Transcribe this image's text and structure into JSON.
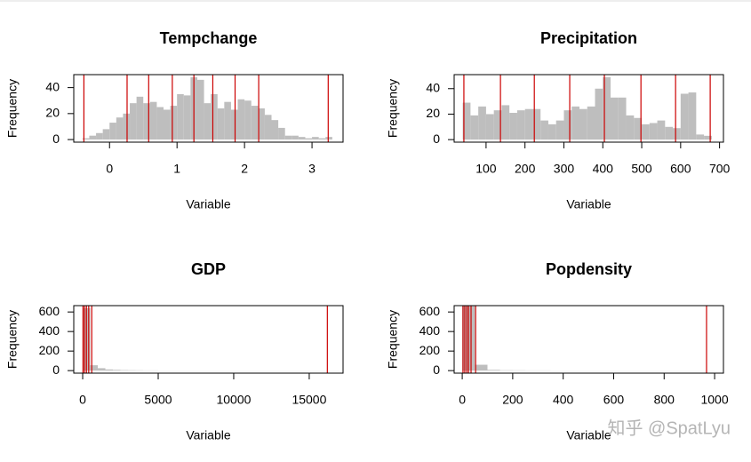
{
  "chart_data": [
    {
      "type": "histogram",
      "title": "Tempchange",
      "xlabel": "Variable",
      "ylabel": "Frequency",
      "bins": [
        -0.4,
        -0.3,
        -0.2,
        -0.1,
        0.0,
        0.1,
        0.2,
        0.3,
        0.4,
        0.5,
        0.6,
        0.7,
        0.8,
        0.9,
        1.0,
        1.1,
        1.2,
        1.3,
        1.4,
        1.5,
        1.6,
        1.7,
        1.8,
        1.9,
        2.0,
        2.1,
        2.2,
        2.3,
        2.4,
        2.5,
        2.6,
        2.7,
        2.8,
        2.9,
        3.0,
        3.1,
        3.2,
        3.3
      ],
      "values": [
        1,
        3,
        5,
        8,
        13,
        17,
        20,
        28,
        33,
        28,
        29,
        25,
        23,
        26,
        35,
        34,
        48,
        46,
        28,
        35,
        24,
        29,
        23,
        31,
        30,
        26,
        24,
        19,
        15,
        9,
        3,
        3,
        2,
        1,
        2,
        1,
        2
      ],
      "vlines": [
        -0.38,
        0.26,
        0.58,
        0.93,
        1.25,
        1.53,
        1.86,
        2.21,
        3.24
      ],
      "color": "#bebebe",
      "line_color": "#cc0000",
      "xlim": [
        -0.53,
        3.46
      ],
      "xticks": [
        0,
        1,
        2,
        3
      ],
      "ylim": [
        -2,
        50
      ],
      "yticks": [
        0,
        20,
        40
      ]
    },
    {
      "type": "histogram",
      "title": "Precipitation",
      "xlabel": "Variable",
      "ylabel": "Frequency",
      "bins": [
        40,
        60,
        80,
        100,
        120,
        140,
        160,
        180,
        200,
        220,
        240,
        260,
        280,
        300,
        320,
        340,
        360,
        380,
        400,
        420,
        440,
        460,
        480,
        500,
        520,
        540,
        560,
        580,
        600,
        620,
        640,
        660,
        680
      ],
      "values": [
        29,
        19,
        26,
        20,
        23,
        27,
        21,
        23,
        24,
        24,
        15,
        12,
        15,
        23,
        26,
        24,
        26,
        40,
        49,
        33,
        33,
        19,
        17,
        12,
        13,
        15,
        10,
        9,
        36,
        37,
        4,
        3
      ],
      "vlines": [
        43,
        137,
        224,
        315,
        404,
        498,
        587,
        676
      ],
      "color": "#bebebe",
      "line_color": "#cc0000",
      "xlim": [
        18,
        710
      ],
      "xticks": [
        100,
        200,
        300,
        400,
        500,
        600,
        700
      ],
      "ylim": [
        -2,
        51
      ],
      "yticks": [
        0,
        20,
        40
      ]
    },
    {
      "type": "histogram",
      "title": "GDP",
      "xlabel": "Variable",
      "ylabel": "Frequency",
      "bins": [
        0,
        500,
        1000,
        1500,
        2000,
        2500,
        3000,
        3500,
        4000,
        4500,
        5000,
        5500,
        6000,
        6500,
        7000,
        7500,
        8000,
        8500,
        9000,
        9500,
        10000,
        10500,
        11000,
        11500,
        12000,
        12500,
        13000,
        13500,
        14000,
        14500,
        15000,
        15500,
        16000,
        16500,
        17000
      ],
      "values": [
        640,
        55,
        25,
        12,
        8,
        5,
        4,
        3,
        2,
        2,
        1,
        1,
        1,
        1,
        1,
        1,
        1,
        1,
        1,
        1,
        1,
        1,
        1,
        1,
        1,
        1,
        1,
        1,
        1,
        1,
        1,
        1,
        1,
        1
      ],
      "vlines": [
        20,
        120,
        250,
        400,
        600,
        16200
      ],
      "color": "#bebebe",
      "line_color": "#cc0000",
      "xlim": [
        -590,
        17240
      ],
      "xticks": [
        0,
        5000,
        10000,
        15000
      ],
      "ylim": [
        -26,
        665
      ],
      "yticks": [
        0,
        200,
        400,
        600
      ]
    },
    {
      "type": "histogram",
      "title": "Popdensity",
      "xlabel": "Variable",
      "ylabel": "Frequency",
      "bins": [
        0,
        50,
        100,
        150,
        200,
        250,
        300,
        350,
        400,
        450,
        500,
        550,
        600,
        650,
        700,
        750,
        800,
        850,
        900,
        950,
        1000
      ],
      "values": [
        660,
        60,
        8,
        4,
        3,
        2,
        2,
        1,
        1,
        1,
        1,
        1,
        1,
        1,
        1,
        1,
        1,
        1,
        1,
        1
      ],
      "vlines": [
        3,
        10,
        18,
        25,
        35,
        53,
        968
      ],
      "color": "#bebebe",
      "line_color": "#cc0000",
      "xlim": [
        -32,
        1035
      ],
      "xticks": [
        0,
        200,
        400,
        600,
        800,
        1000
      ],
      "ylim": [
        -26,
        665
      ],
      "yticks": [
        0,
        200,
        400,
        600
      ]
    }
  ],
  "watermark": "知乎 @SpatLyu"
}
